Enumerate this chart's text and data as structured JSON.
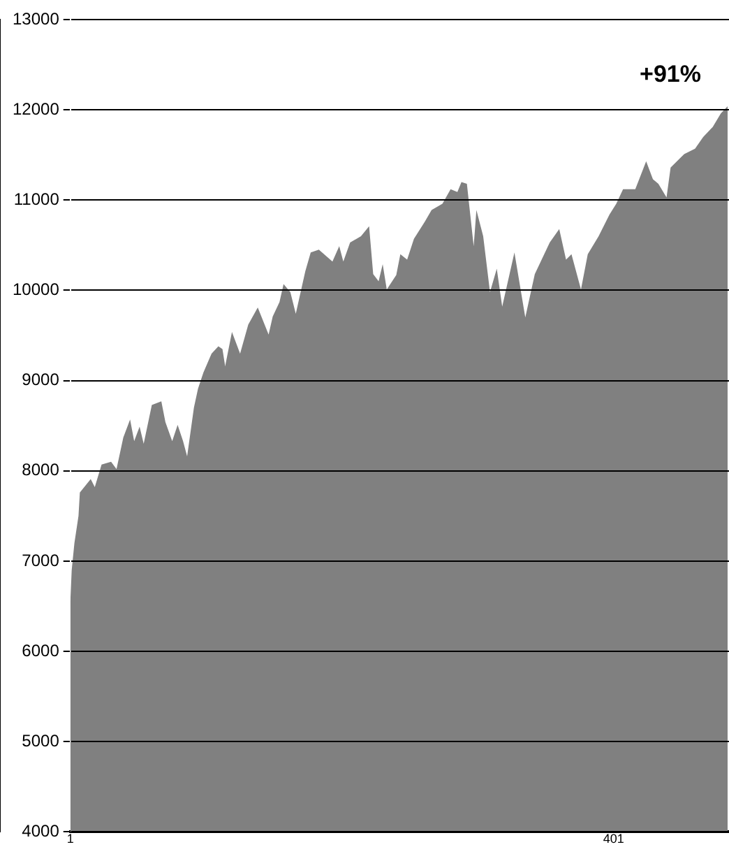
{
  "chart_data": {
    "type": "area",
    "x": [
      1,
      2,
      4,
      7,
      8,
      16,
      19,
      24,
      31,
      35,
      40,
      45,
      48,
      52,
      55,
      61,
      68,
      71,
      76,
      80,
      84,
      87,
      92,
      95,
      99,
      105,
      110,
      113,
      115,
      120,
      126,
      132,
      139,
      147,
      150,
      155,
      158,
      163,
      167,
      174,
      178,
      184,
      194,
      199,
      202,
      207,
      215,
      221,
      224,
      228,
      231,
      234,
      241,
      244,
      249,
      254,
      262,
      267,
      275,
      281,
      286,
      289,
      293,
      298,
      300,
      305,
      310,
      315,
      319,
      328,
      336,
      343,
      354,
      361,
      366,
      370,
      377,
      382,
      390,
      398,
      403,
      408,
      417,
      425,
      430,
      434,
      440,
      443,
      453,
      461,
      467,
      474,
      480,
      485
    ],
    "series": [
      {
        "color": "#808080",
        "values": [
          6550,
          6900,
          7200,
          7500,
          7760,
          7910,
          7820,
          8070,
          8100,
          8020,
          8370,
          8570,
          8330,
          8490,
          8300,
          8730,
          8770,
          8540,
          8330,
          8510,
          8330,
          8160,
          8700,
          8910,
          9090,
          9300,
          9380,
          9350,
          9160,
          9540,
          9300,
          9620,
          9810,
          9510,
          9710,
          9870,
          10070,
          9980,
          9740,
          10210,
          10420,
          10450,
          10320,
          10490,
          10320,
          10530,
          10600,
          10710,
          10180,
          10100,
          10290,
          10010,
          10170,
          10400,
          10340,
          10570,
          10760,
          10890,
          10960,
          11120,
          11090,
          11200,
          11180,
          10490,
          10890,
          10600,
          9980,
          10240,
          9820,
          10420,
          9700,
          10180,
          10530,
          10680,
          10340,
          10400,
          10010,
          10400,
          10600,
          10840,
          10960,
          11120,
          11120,
          11430,
          11230,
          11180,
          11030,
          11360,
          11510,
          11570,
          11700,
          11810,
          11960,
          12040
        ]
      }
    ],
    "xlim": [
      1,
      486
    ],
    "xticks": [
      1,
      401
    ],
    "ylim": [
      4000,
      13000
    ],
    "yticks": [
      4000,
      5000,
      6000,
      7000,
      8000,
      9000,
      10000,
      11000,
      12000,
      13000
    ],
    "grid": "y",
    "legend": false,
    "annotations": [
      "+91%"
    ]
  }
}
